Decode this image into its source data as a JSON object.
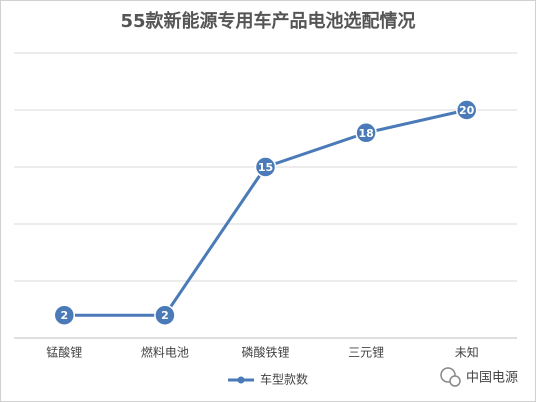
{
  "chart_data": {
    "type": "line",
    "title": "55款新能源专用车产品电池选配情况",
    "categories": [
      "锰酸锂",
      "燃料电池",
      "磷酸铁锂",
      "三元锂",
      "未知"
    ],
    "series": [
      {
        "name": "车型款数",
        "color": "#4a7ab8",
        "values": [
          2,
          2,
          15,
          18,
          20
        ]
      }
    ],
    "ylim": [
      0,
      25
    ],
    "yticks": [
      0,
      5,
      10,
      15,
      20,
      25
    ],
    "grid": true,
    "legend": "bottom",
    "watermark": "中国电源"
  }
}
